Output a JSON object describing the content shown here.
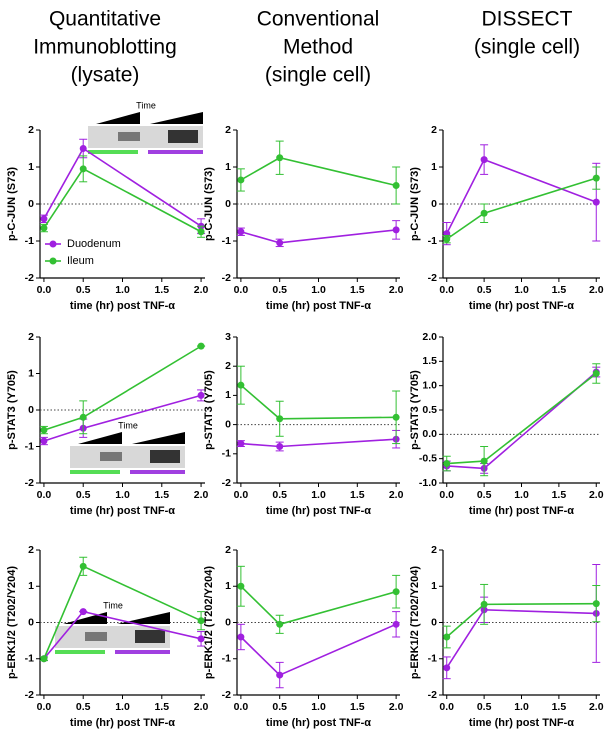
{
  "column_headers": [
    [
      "Quantitative",
      "Immunoblotting",
      "(lysate)"
    ],
    [
      "Conventional",
      "Method",
      "(single cell)"
    ],
    [
      "DISSECT",
      "(single cell)"
    ]
  ],
  "chart_data": [
    {
      "type": "line",
      "ylabel": "p-C-JUN (S73)",
      "xlabel": "time (hr) post TNF-α",
      "inset_label": "Time",
      "legend": "bottom-left",
      "zero_line": 0,
      "x": [
        0,
        0.5,
        2
      ],
      "xlim": [
        -0.05,
        2.05
      ],
      "xticks": [
        {
          "value": 0,
          "label": "0.0"
        },
        {
          "value": 0.5,
          "label": "0.5"
        },
        {
          "value": 1,
          "label": "1.0"
        },
        {
          "value": 1.5,
          "label": "1.5"
        },
        {
          "value": 2,
          "label": "2.0"
        }
      ],
      "ylim": [
        -2,
        2
      ],
      "yticks": [
        -2,
        -1,
        0,
        1,
        2
      ],
      "series": [
        {
          "name": "Duodenum",
          "color": "#a020e0",
          "values": [
            -0.4,
            1.5,
            -0.6
          ],
          "errors": [
            0.1,
            0.25,
            0.2
          ]
        },
        {
          "name": "Ileum",
          "color": "#33c033",
          "values": [
            -0.65,
            0.95,
            -0.75
          ],
          "errors": [
            0.1,
            0.35,
            0.15
          ]
        }
      ]
    },
    {
      "type": "line",
      "ylabel": "p-C-JUN (S73)",
      "xlabel": "time (hr) post TNF-α",
      "zero_line": 0,
      "x": [
        0,
        0.5,
        2
      ],
      "xlim": [
        -0.05,
        2.05
      ],
      "xticks": [
        {
          "value": 0,
          "label": "0.0"
        },
        {
          "value": 0.5,
          "label": "0.5"
        },
        {
          "value": 1,
          "label": "1.0"
        },
        {
          "value": 1.5,
          "label": "1.5"
        },
        {
          "value": 2,
          "label": "2.0"
        }
      ],
      "ylim": [
        -2,
        2
      ],
      "yticks": [
        -2,
        -1,
        0,
        1,
        2
      ],
      "series": [
        {
          "name": "Duodenum",
          "color": "#a020e0",
          "values": [
            -0.75,
            -1.05,
            -0.7
          ],
          "errors": [
            0.1,
            0.1,
            0.25
          ]
        },
        {
          "name": "Ileum",
          "color": "#33c033",
          "values": [
            0.65,
            1.25,
            0.5
          ],
          "errors": [
            0.3,
            0.45,
            0.5
          ]
        }
      ]
    },
    {
      "type": "line",
      "ylabel": "p-C-JUN (S73)",
      "xlabel": "time (hr) post TNF-α",
      "zero_line": 0,
      "x": [
        0,
        0.5,
        2
      ],
      "xlim": [
        -0.05,
        2.05
      ],
      "xticks": [
        {
          "value": 0,
          "label": "0.0"
        },
        {
          "value": 0.5,
          "label": "0.5"
        },
        {
          "value": 1,
          "label": "1.0"
        },
        {
          "value": 1.5,
          "label": "1.5"
        },
        {
          "value": 2,
          "label": "2.0"
        }
      ],
      "ylim": [
        -2,
        2
      ],
      "yticks": [
        -2,
        -1,
        0,
        1,
        2
      ],
      "series": [
        {
          "name": "Duodenum",
          "color": "#a020e0",
          "values": [
            -0.8,
            1.2,
            0.05
          ],
          "errors": [
            0.3,
            0.4,
            1.05
          ]
        },
        {
          "name": "Ileum",
          "color": "#33c033",
          "values": [
            -0.95,
            -0.25,
            0.7
          ],
          "errors": [
            0.1,
            0.25,
            0.3
          ]
        }
      ]
    },
    {
      "type": "line",
      "ylabel": "p-STAT3 (Y705)",
      "xlabel": "time (hr) post TNF-α",
      "inset_label": "Time",
      "zero_line": 0,
      "x": [
        0,
        0.5,
        2
      ],
      "xlim": [
        -0.05,
        2.05
      ],
      "xticks": [
        {
          "value": 0,
          "label": "0.0"
        },
        {
          "value": 0.5,
          "label": "0.5"
        },
        {
          "value": 1,
          "label": "1.0"
        },
        {
          "value": 1.5,
          "label": "1.5"
        },
        {
          "value": 2,
          "label": "2.0"
        }
      ],
      "ylim": [
        -2,
        2
      ],
      "yticks": [
        -2,
        -1,
        0,
        1,
        2
      ],
      "series": [
        {
          "name": "Duodenum",
          "color": "#a020e0",
          "values": [
            -0.85,
            -0.5,
            0.4
          ],
          "errors": [
            0.1,
            0.25,
            0.15
          ]
        },
        {
          "name": "Ileum",
          "color": "#33c033",
          "values": [
            -0.55,
            -0.2,
            1.75
          ],
          "errors": [
            0.1,
            0.45,
            0
          ]
        }
      ]
    },
    {
      "type": "line",
      "ylabel": "p-STAT3 (Y705)",
      "xlabel": "time (hr) post TNF-α",
      "zero_line": 0,
      "x": [
        0,
        0.5,
        2
      ],
      "xlim": [
        -0.05,
        2.05
      ],
      "xticks": [
        {
          "value": 0,
          "label": "0.0"
        },
        {
          "value": 0.5,
          "label": "0.5"
        },
        {
          "value": 1,
          "label": "1.0"
        },
        {
          "value": 1.5,
          "label": "1.5"
        },
        {
          "value": 2,
          "label": "2.0"
        }
      ],
      "ylim": [
        -2,
        3
      ],
      "yticks": [
        -2,
        -1,
        0,
        1,
        2,
        3
      ],
      "series": [
        {
          "name": "Duodenum",
          "color": "#a020e0",
          "values": [
            -0.65,
            -0.75,
            -0.5
          ],
          "errors": [
            0.1,
            0.15,
            0.3
          ]
        },
        {
          "name": "Ileum",
          "color": "#33c033",
          "values": [
            1.35,
            0.2,
            0.25
          ],
          "errors": [
            0.65,
            0.6,
            0.9
          ]
        }
      ]
    },
    {
      "type": "line",
      "ylabel": "p-STAT3 (Y705)",
      "xlabel": "time (hr) post TNF-α",
      "zero_line": 0,
      "x": [
        0,
        0.5,
        2
      ],
      "xlim": [
        -0.05,
        2.05
      ],
      "xticks": [
        {
          "value": 0,
          "label": "0.0"
        },
        {
          "value": 0.5,
          "label": "0.5"
        },
        {
          "value": 1,
          "label": "1.0"
        },
        {
          "value": 1.5,
          "label": "1.5"
        },
        {
          "value": 2,
          "label": "2.0"
        }
      ],
      "ylim": [
        -1,
        2
      ],
      "yticks": [
        {
          "value": -1,
          "label": "-1.0"
        },
        {
          "value": -0.5,
          "label": "-0.5"
        },
        {
          "value": 0,
          "label": "0.0"
        },
        {
          "value": 0.5,
          "label": "0.5"
        },
        {
          "value": 1,
          "label": "1.0"
        },
        {
          "value": 1.5,
          "label": "1.5"
        },
        {
          "value": 2,
          "label": "2.0"
        }
      ],
      "series": [
        {
          "name": "Duodenum",
          "color": "#a020e0",
          "values": [
            -0.65,
            -0.7,
            1.28
          ],
          "errors": [
            0.1,
            0.1,
            0.1
          ]
        },
        {
          "name": "Ileum",
          "color": "#33c033",
          "values": [
            -0.6,
            -0.55,
            1.25
          ],
          "errors": [
            0.15,
            0.3,
            0.2
          ]
        }
      ]
    },
    {
      "type": "line",
      "ylabel": "p-ERK1/2 (T202/Y204)",
      "xlabel": "time (hr) post TNF-α",
      "inset_label": "Time",
      "zero_line": 0,
      "x": [
        0,
        0.5,
        2
      ],
      "xlim": [
        -0.05,
        2.05
      ],
      "xticks": [
        {
          "value": 0,
          "label": "0.0"
        },
        {
          "value": 0.5,
          "label": "0.5"
        },
        {
          "value": 1,
          "label": "1.0"
        },
        {
          "value": 1.5,
          "label": "1.5"
        },
        {
          "value": 2,
          "label": "2.0"
        }
      ],
      "ylim": [
        -2,
        2
      ],
      "yticks": [
        -2,
        -1,
        0,
        1,
        2
      ],
      "series": [
        {
          "name": "Duodenum",
          "color": "#a020e0",
          "values": [
            -1,
            0.3,
            -0.45
          ],
          "errors": [
            0.05,
            0,
            0.2
          ]
        },
        {
          "name": "Ileum",
          "color": "#33c033",
          "values": [
            -1,
            1.55,
            0.05
          ],
          "errors": [
            0.05,
            0.25,
            0.25
          ]
        }
      ]
    },
    {
      "type": "line",
      "ylabel": "p-ERK1/2 (T202/Y204)",
      "xlabel": "time (hr) post TNF-α",
      "zero_line": 0,
      "x": [
        0,
        0.5,
        2
      ],
      "xlim": [
        -0.05,
        2.05
      ],
      "xticks": [
        {
          "value": 0,
          "label": "0.0"
        },
        {
          "value": 0.5,
          "label": "0.5"
        },
        {
          "value": 1,
          "label": "1.0"
        },
        {
          "value": 1.5,
          "label": "1.5"
        },
        {
          "value": 2,
          "label": "2.0"
        }
      ],
      "ylim": [
        -2,
        2
      ],
      "yticks": [
        -2,
        -1,
        0,
        1,
        2
      ],
      "series": [
        {
          "name": "Duodenum",
          "color": "#a020e0",
          "values": [
            -0.4,
            -1.45,
            -0.05
          ],
          "errors": [
            0.35,
            0.35,
            0.35
          ]
        },
        {
          "name": "Ileum",
          "color": "#33c033",
          "values": [
            1.0,
            -0.05,
            0.85
          ],
          "errors": [
            0.55,
            0.25,
            0.45
          ]
        }
      ]
    },
    {
      "type": "line",
      "ylabel": "p-ERK1/2 (T202/Y204)",
      "xlabel": "time (hr) post TNF-α",
      "zero_line": 0,
      "x": [
        0,
        0.5,
        2
      ],
      "xlim": [
        -0.05,
        2.05
      ],
      "xticks": [
        {
          "value": 0,
          "label": "0.0"
        },
        {
          "value": 0.5,
          "label": "0.5"
        },
        {
          "value": 1,
          "label": "1.0"
        },
        {
          "value": 1.5,
          "label": "1.5"
        },
        {
          "value": 2,
          "label": "2.0"
        }
      ],
      "ylim": [
        -2,
        2
      ],
      "yticks": [
        -2,
        -1,
        0,
        1,
        2
      ],
      "series": [
        {
          "name": "Duodenum",
          "color": "#a020e0",
          "values": [
            -1.25,
            0.35,
            0.25
          ],
          "errors": [
            0.3,
            0.35,
            1.35
          ]
        },
        {
          "name": "Ileum",
          "color": "#33c033",
          "values": [
            -0.4,
            0.5,
            0.52
          ],
          "errors": [
            0.3,
            0.55,
            0.5
          ]
        }
      ]
    }
  ]
}
